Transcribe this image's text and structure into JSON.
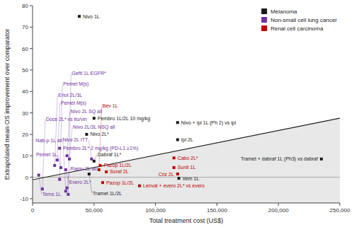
{
  "chart_data": {
    "type": "scatter",
    "xlabel": "Total treatment cost (US$)",
    "ylabel": "Extrapolated mean OS improvement over comparator",
    "xlim": [
      0,
      250000
    ],
    "ylim": [
      -12,
      80
    ],
    "xticks": [
      0,
      {
        "value": 50000,
        "label": "50,000"
      },
      {
        "value": 100000,
        "label": "100,000"
      },
      {
        "value": 150000,
        "label": "150,000"
      },
      {
        "value": 200000,
        "label": "200,000"
      },
      {
        "value": 250000,
        "label": "250,000"
      }
    ],
    "yticks": [
      -10,
      0,
      10,
      20,
      30,
      40,
      50,
      60,
      70,
      80
    ],
    "grid": false,
    "legend": "upper right",
    "marker": "square",
    "hlines": [
      0
    ],
    "regression": {
      "x": [
        0,
        250000
      ],
      "values": [
        -1.2,
        27.5
      ],
      "color": "#1a1a1a",
      "area_color": "#cccccc"
    },
    "series": [
      {
        "name": "Melanoma",
        "color": "#1a1a1a",
        "x": [
          38000,
          50000,
          44000,
          118000,
          118000,
          235000,
          50000,
          46000,
          119000
        ],
        "values": [
          75.0,
          27.5,
          20.0,
          25.5,
          17.5,
          8.5,
          7.5,
          1.5,
          -0.5
        ],
        "labels": [
          "Nivo 1L",
          "Pembro 1L/2L 10 mg/kg",
          "Nivo 2L*",
          "Nivo + ipi 1L (Ph 2) vs ipi",
          "Ipi 2L",
          "Tramet + dabraf 1L (Ph3) vs dabraf",
          "Dabraf 1L*",
          "Tramet 1L/2L",
          "Vem 1L"
        ]
      },
      {
        "name": "Non-small cell lung cancer",
        "color": "#7030a0",
        "x": [
          22000,
          28000,
          30000,
          48000,
          20000,
          18000,
          23000,
          27000,
          5000,
          22000,
          8000,
          28000,
          27000,
          29000
        ],
        "values": [
          13.5,
          10.0,
          8.5,
          8.5,
          8.0,
          5.5,
          4.5,
          3.5,
          1.0,
          -1.0,
          -5.5,
          -5.0,
          -6.5,
          -8.0
        ],
        "labels": [
          "Pembro 2L* 2 mg/kg (PD-L1 ≥1%)",
          "Nivo 2L SQ all",
          "Nivo 2L/3L NSQ all",
          "Nivo 2L ITT",
          "Pemet M(s)",
          "Erlot 2L/3L",
          "Pemet 1L",
          "Evero 2L*",
          "Tems 1L",
          "Pemet M(s)",
          "Doce 2L* vs ito/vin",
          "Ramu 2L all",
          "Nab-p 1L all",
          "Gefit 1L EGFR*"
        ]
      },
      {
        "name": "Renal cell carcinoma",
        "color": "#c00000",
        "x": [
          55000,
          54000,
          60000,
          57000,
          115000,
          115000,
          118000,
          87000
        ],
        "values": [
          5.5,
          3.5,
          2.5,
          -2.5,
          9.0,
          4.5,
          1.5,
          -4.0
        ],
        "labels": [
          "Pazop 1L/2L",
          "Bev 1L",
          "Soraf 2L",
          "Pazop 1L/2L",
          "Cabo 2L*",
          "Sunit 1L",
          "Criz 2L",
          "Lenval + evero 2L* vs evero"
        ]
      }
    ]
  }
}
